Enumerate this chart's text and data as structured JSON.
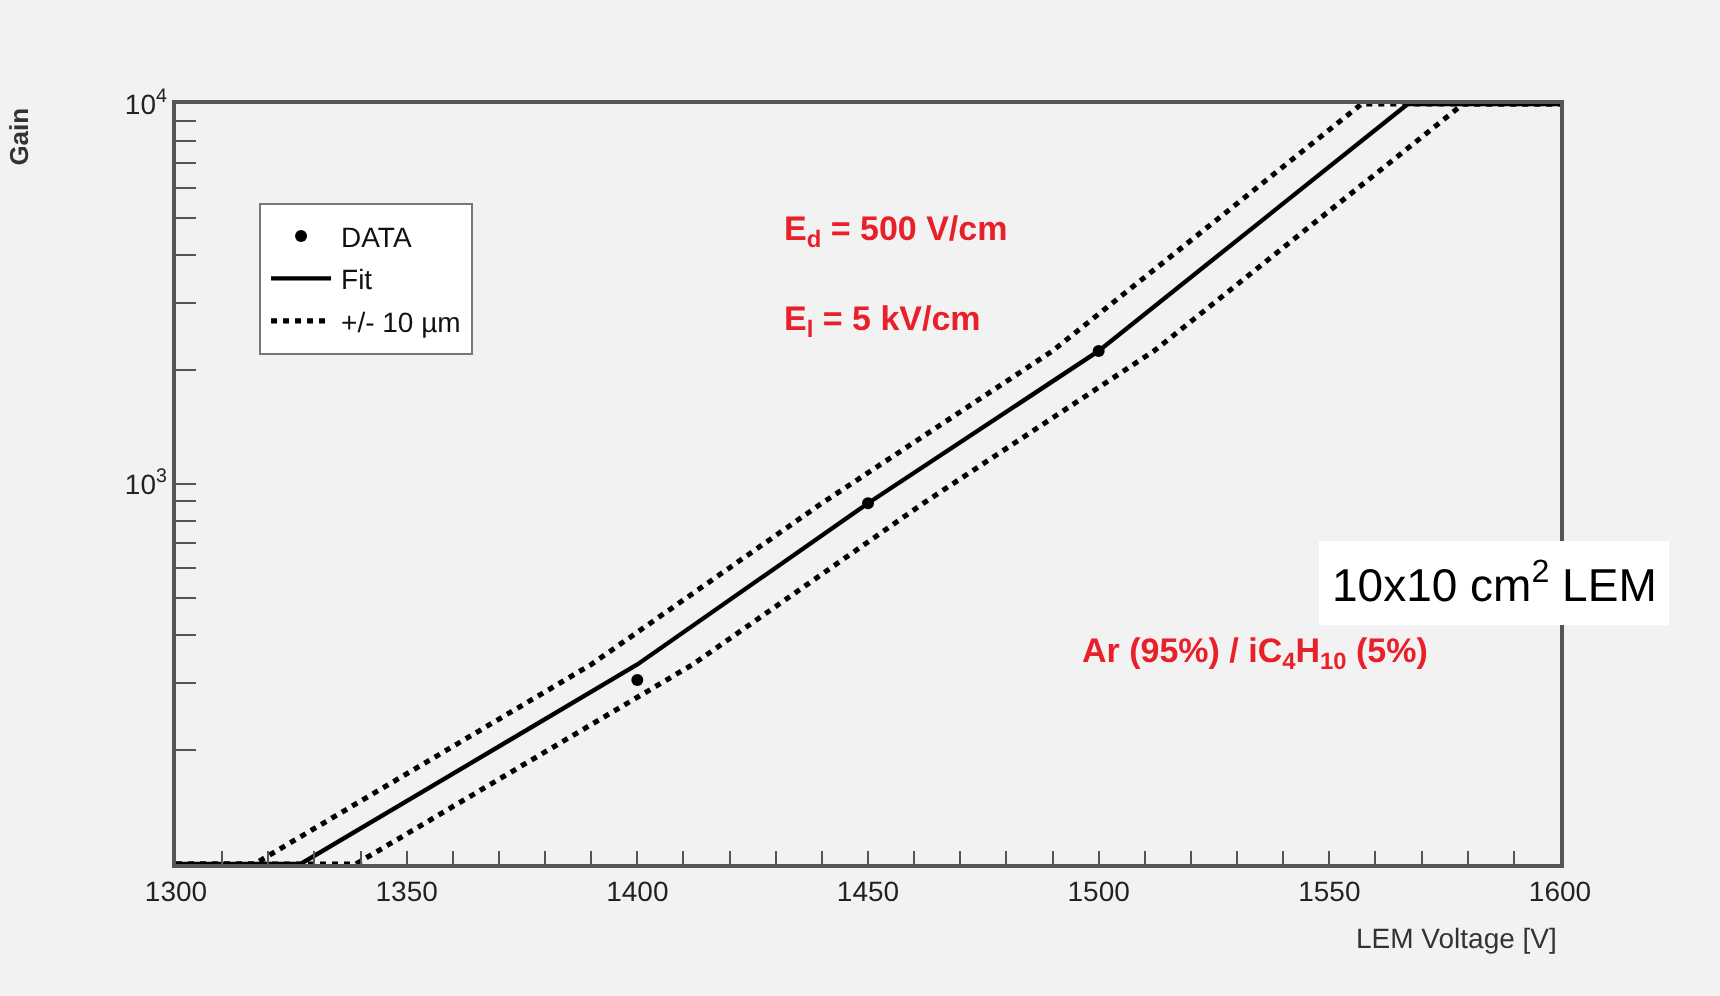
{
  "chart_data": {
    "type": "line",
    "xlabel": "LEM Voltage [V]",
    "ylabel": "Gain",
    "log": "y",
    "grid": false,
    "legend": "top left",
    "xlim": [
      1300,
      1600
    ],
    "xticks": [
      1300,
      {
        "value": 1310,
        "label": null
      },
      {
        "value": 1320,
        "label": null
      },
      {
        "value": 1330,
        "label": null
      },
      {
        "value": 1340,
        "label": null
      },
      1350,
      {
        "value": 1360,
        "label": null
      },
      {
        "value": 1370,
        "label": null
      },
      {
        "value": 1380,
        "label": null
      },
      {
        "value": 1390,
        "label": null
      },
      1400,
      {
        "value": 1410,
        "label": null
      },
      {
        "value": 1420,
        "label": null
      },
      {
        "value": 1430,
        "label": null
      },
      {
        "value": 1440,
        "label": null
      },
      1450,
      {
        "value": 1460,
        "label": null
      },
      {
        "value": 1470,
        "label": null
      },
      {
        "value": 1480,
        "label": null
      },
      {
        "value": 1490,
        "label": null
      },
      1500,
      {
        "value": 1510,
        "label": null
      },
      {
        "value": 1520,
        "label": null
      },
      {
        "value": 1530,
        "label": null
      },
      {
        "value": 1540,
        "label": null
      },
      1550,
      {
        "value": 1560,
        "label": null
      },
      {
        "value": 1570,
        "label": null
      },
      {
        "value": 1580,
        "label": null
      },
      {
        "value": 1590,
        "label": null
      },
      1600
    ],
    "ylim": [
      100,
      10000
    ],
    "yticks": [
      {
        "value": 200,
        "label": null
      },
      {
        "value": 300,
        "label": null
      },
      {
        "value": 400,
        "label": null
      },
      {
        "value": 500,
        "label": null
      },
      {
        "value": 600,
        "label": null
      },
      {
        "value": 700,
        "label": null
      },
      {
        "value": 800,
        "label": null
      },
      {
        "value": 900,
        "label": null
      },
      {
        "value": 1000,
        "label": "10$^{3}$"
      },
      {
        "value": 2000,
        "label": null
      },
      {
        "value": 3000,
        "label": null
      },
      {
        "value": 4000,
        "label": null
      },
      {
        "value": 5000,
        "label": null
      },
      {
        "value": 6000,
        "label": null
      },
      {
        "value": 7000,
        "label": null
      },
      {
        "value": 8000,
        "label": null
      },
      {
        "value": 9000,
        "label": null
      },
      {
        "value": 10000,
        "label": "10$^{4}$"
      }
    ],
    "series": [
      {
        "name": "DATA",
        "type": "scatter",
        "marker": "circle",
        "color": "#000000",
        "x": [
          1400,
          1450,
          1500
        ],
        "values": [
          305,
          890,
          2240
        ]
      },
      {
        "name": "Fit",
        "line_style": "solid",
        "color": "#000000",
        "x": [
          1300,
          1327,
          1400,
          1450,
          1500,
          1567,
          1600
        ],
        "values": [
          100,
          100,
          335,
          890,
          2240,
          10000,
          10000
        ]
      },
      {
        "name": "+/- 10 µm",
        "line_style": "dotted",
        "color": "#000000",
        "x": [
          1300,
          1317,
          1390,
          1440,
          1490,
          1557,
          1600
        ],
        "values": [
          100,
          100,
          335,
          890,
          2240,
          10000,
          10000
        ]
      },
      {
        "line_style": "dotted",
        "color": "#000000",
        "x": [
          1300,
          1339,
          1412,
          1462,
          1512,
          1579,
          1600
        ],
        "values": [
          100,
          100,
          335,
          890,
          2240,
          10000,
          10000
        ]
      }
    ],
    "annotations": [
      "E$_{d}$ = 500 V/cm",
      "E$_{l}$ = 5 kV/cm",
      "10x10 cm$^{2}$ LEM",
      "Ar (95%) / iC$_{4}$H$_{10}$ (5%)"
    ]
  }
}
